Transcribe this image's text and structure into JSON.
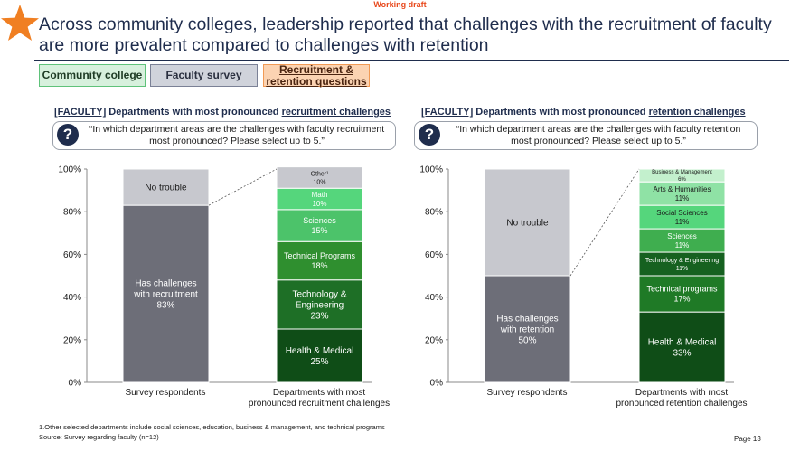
{
  "draft": "Working draft",
  "title": "Across community colleges, leadership reported that challenges with the recruitment of faculty are more prevalent compared to challenges with retention",
  "tags": {
    "community": "Community college",
    "faculty": "Faculty",
    "survey": "survey",
    "recruit_line1": "Recruitment &",
    "recruit_line2": "retention questions"
  },
  "colors": {
    "navy": "#1f2d4d",
    "accent_orange": "#f07f22",
    "gray_bar": "#6d6e78",
    "light_gray_bar": "#c7c8ce"
  },
  "left_panel": {
    "heading_tag": "[FACULTY]",
    "heading_mid": " Departments with most pronounced ",
    "heading_u": "recruitment challenges",
    "question_icon": "?",
    "question": "“In which department areas are the challenges with faculty recruitment most pronounced? Please select up to 5.”"
  },
  "right_panel": {
    "heading_tag": "[FACULTY]",
    "heading_mid": " Departments with most pronounced ",
    "heading_u": "retention challenges",
    "question_icon": "?",
    "question": "“In which department areas are the challenges with faculty retention most pronounced? Please select up to 5.”"
  },
  "chart_data": [
    {
      "type": "bar",
      "stacked": true,
      "percent_axis": true,
      "ylim": [
        0,
        100
      ],
      "yticks": [
        "0%",
        "20%",
        "40%",
        "60%",
        "80%",
        "100%"
      ],
      "grid": false,
      "categories": [
        "Survey respondents",
        "Departments with most pronounced recruitment challenges"
      ],
      "category_lines": [
        [
          "Survey respondents"
        ],
        [
          "Departments with most",
          "pronounced recruitment challenges"
        ]
      ],
      "bars": [
        {
          "segments": [
            {
              "lines": [
                "Has challenges",
                "with recruitment",
                "83%"
              ],
              "value": 83,
              "color": "#6d6e78",
              "text_color": "#ffffff",
              "size": 10
            },
            {
              "lines": [
                "No trouble"
              ],
              "value": 17,
              "color": "#c7c8ce",
              "text_color": "#1a1a1a",
              "size": 10
            }
          ]
        },
        {
          "segments": [
            {
              "lines": [
                "Health & Medical",
                "25%"
              ],
              "value": 25,
              "color": "#0f4d17",
              "text_color": "#ffffff",
              "size": 10
            },
            {
              "lines": [
                "Technology &",
                "Engineering",
                "23%"
              ],
              "value": 23,
              "color": "#1e6f26",
              "text_color": "#ffffff",
              "size": 10
            },
            {
              "lines": [
                "Technical Programs",
                "18%"
              ],
              "value": 18,
              "color": "#2f8f2f",
              "text_color": "#ffffff",
              "size": 9
            },
            {
              "lines": [
                "Sciences",
                "15%"
              ],
              "value": 15,
              "color": "#4cc36a",
              "text_color": "#ffffff",
              "size": 9
            },
            {
              "lines": [
                "Math",
                "10%"
              ],
              "value": 10,
              "color": "#55d67c",
              "text_color": "#ffffff",
              "size": 8
            },
            {
              "lines": [
                "Other¹",
                "10%"
              ],
              "value": 10,
              "color": "#c7c8ce",
              "text_color": "#1a1a1a",
              "size": 7
            }
          ]
        }
      ]
    },
    {
      "type": "bar",
      "stacked": true,
      "percent_axis": true,
      "ylim": [
        0,
        100
      ],
      "yticks": [
        "0%",
        "20%",
        "40%",
        "60%",
        "80%",
        "100%"
      ],
      "grid": false,
      "categories": [
        "Survey respondents",
        "Departments with most pronounced retention challenges"
      ],
      "category_lines": [
        [
          "Survey respondents"
        ],
        [
          "Departments with most",
          "pronounced retention challenges"
        ]
      ],
      "bars": [
        {
          "segments": [
            {
              "lines": [
                "Has challenges",
                "with retention",
                "50%"
              ],
              "value": 50,
              "color": "#6d6e78",
              "text_color": "#ffffff",
              "size": 10
            },
            {
              "lines": [
                "No trouble"
              ],
              "value": 50,
              "color": "#c7c8ce",
              "text_color": "#1a1a1a",
              "size": 10
            }
          ]
        },
        {
          "segments": [
            {
              "lines": [
                "Health & Medical",
                "33%"
              ],
              "value": 33,
              "color": "#0f4d17",
              "text_color": "#ffffff",
              "size": 10
            },
            {
              "lines": [
                "Technical programs",
                "17%"
              ],
              "value": 17,
              "color": "#1f7a26",
              "text_color": "#ffffff",
              "size": 9
            },
            {
              "lines": [
                "Technology & Engineering",
                "11%"
              ],
              "value": 11,
              "color": "#166120",
              "text_color": "#ffffff",
              "size": 7
            },
            {
              "lines": [
                "Sciences",
                "11%"
              ],
              "value": 11,
              "color": "#3fae4f",
              "text_color": "#ffffff",
              "size": 8
            },
            {
              "lines": [
                "Social Sciences",
                "11%"
              ],
              "value": 11,
              "color": "#55d67c",
              "text_color": "#1a1a1a",
              "size": 8
            },
            {
              "lines": [
                "Arts & Humanities",
                "11%"
              ],
              "value": 11,
              "color": "#8fe2a5",
              "text_color": "#1a1a1a",
              "size": 8
            },
            {
              "lines": [
                "Business & Management",
                "6%"
              ],
              "value": 6,
              "color": "#c3f0cd",
              "text_color": "#1a1a1a",
              "size": 6
            }
          ]
        }
      ]
    }
  ],
  "footnote": "1.Other selected departments include social sciences, education, business & management, and technical programs",
  "source": "Source: Survey regarding faculty (n=12)",
  "page": "Page 13"
}
